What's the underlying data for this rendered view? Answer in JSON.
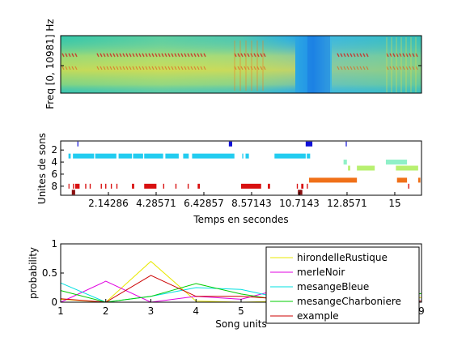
{
  "spectrogram": {
    "ylabel": "Freq [0, 10981] Hz"
  },
  "units_plot": {
    "ylabel": "Unites de sons",
    "xlabel": "Temps en secondes",
    "xlim": [
      0,
      16.2
    ],
    "ylim": [
      9.5,
      0.5
    ],
    "yticks": [
      "2",
      "4",
      "6",
      "8"
    ],
    "xticks": [
      {
        "value": 2.14286,
        "label": "2.14286"
      },
      {
        "value": 4.28571,
        "label": "4.28571"
      },
      {
        "value": 6.42857,
        "label": "6.42857"
      },
      {
        "value": 8.57143,
        "label": "8.57143"
      },
      {
        "value": 10.7143,
        "label": "10.7143"
      },
      {
        "value": 12.8571,
        "label": "12.8571"
      },
      {
        "value": 15.0,
        "label": "15"
      }
    ],
    "segments": [
      {
        "unit": 1,
        "color": "#1010d8",
        "ranges": [
          [
            0.75,
            0.78
          ],
          [
            7.55,
            7.7
          ],
          [
            11.0,
            11.3
          ],
          [
            12.8,
            12.83
          ]
        ]
      },
      {
        "unit": 3,
        "color": "#22ccf0",
        "ranges": [
          [
            0.35,
            0.45
          ],
          [
            0.55,
            1.5
          ],
          [
            1.55,
            2.5
          ],
          [
            2.6,
            3.2
          ],
          [
            3.25,
            3.7
          ],
          [
            3.75,
            4.6
          ],
          [
            4.7,
            5.3
          ],
          [
            5.5,
            5.75
          ],
          [
            5.9,
            7.8
          ],
          [
            8.15,
            8.2
          ],
          [
            8.3,
            8.45
          ],
          [
            9.6,
            11.0
          ],
          [
            11.05,
            11.2
          ]
        ]
      },
      {
        "unit": 4,
        "color": "#8ff0c8",
        "ranges": [
          [
            12.7,
            12.85
          ],
          [
            14.6,
            15.55
          ]
        ]
      },
      {
        "unit": 5,
        "color": "#b8f070",
        "ranges": [
          [
            12.9,
            13.0
          ],
          [
            13.3,
            14.1
          ],
          [
            15.05,
            16.05
          ]
        ]
      },
      {
        "unit": 7,
        "color": "#f07018",
        "ranges": [
          [
            11.15,
            13.3
          ],
          [
            15.1,
            15.55
          ],
          [
            16.05,
            16.15
          ]
        ]
      },
      {
        "unit": 8,
        "color": "#d81010",
        "ranges": [
          [
            0.35,
            0.38
          ],
          [
            0.55,
            0.6
          ],
          [
            0.65,
            0.85
          ],
          [
            1.1,
            1.15
          ],
          [
            1.3,
            1.35
          ],
          [
            1.8,
            1.85
          ],
          [
            2.0,
            2.05
          ],
          [
            2.25,
            2.3
          ],
          [
            2.5,
            2.55
          ],
          [
            3.2,
            3.3
          ],
          [
            3.75,
            4.3
          ],
          [
            4.6,
            4.65
          ],
          [
            5.15,
            5.2
          ],
          [
            5.7,
            5.75
          ],
          [
            6.15,
            6.25
          ],
          [
            8.1,
            9.0
          ],
          [
            9.3,
            9.4
          ],
          [
            10.6,
            10.65
          ],
          [
            10.8,
            10.9
          ],
          [
            11.05,
            11.1
          ],
          [
            15.6,
            15.65
          ]
        ]
      },
      {
        "unit": 9,
        "color": "#8a1010",
        "ranges": [
          [
            0.5,
            0.65
          ],
          [
            10.65,
            10.85
          ]
        ]
      }
    ]
  },
  "chart_data": {
    "type": "line",
    "xlabel": "Song units",
    "ylabel": "probability",
    "xlim": [
      1,
      9
    ],
    "ylim": [
      0,
      1
    ],
    "xticks": [
      1,
      2,
      3,
      4,
      5,
      6,
      7,
      8,
      9
    ],
    "yticks": [
      {
        "value": 0,
        "label": "0"
      },
      {
        "value": 0.5,
        "label": "0.5"
      },
      {
        "value": 1,
        "label": "1"
      }
    ],
    "legend_position": "upper-right",
    "x": [
      1,
      2,
      3,
      4,
      5,
      6,
      7,
      8,
      9
    ],
    "series": [
      {
        "name": "hirondelleRustique",
        "color": "#e8e800",
        "values": [
          0.05,
          0.0,
          0.7,
          0.02,
          0.0,
          0.02,
          0.02,
          0.05,
          0.08
        ]
      },
      {
        "name": "merleNoir",
        "color": "#e000e0",
        "values": [
          0.0,
          0.36,
          0.0,
          0.1,
          0.05,
          0.25,
          0.15,
          0.05,
          0.0
        ]
      },
      {
        "name": "mesangeBleue",
        "color": "#00e0e0",
        "values": [
          0.33,
          0.0,
          0.1,
          0.25,
          0.22,
          0.05,
          0.0,
          0.0,
          0.02
        ]
      },
      {
        "name": "mesangeCharboniere",
        "color": "#00cc00",
        "values": [
          0.2,
          0.0,
          0.1,
          0.32,
          0.14,
          0.02,
          0.08,
          0.05,
          0.15
        ]
      },
      {
        "name": "example",
        "color": "#cc0000",
        "values": [
          0.06,
          0.0,
          0.46,
          0.1,
          0.1,
          0.05,
          0.02,
          0.02,
          0.02
        ]
      }
    ]
  }
}
